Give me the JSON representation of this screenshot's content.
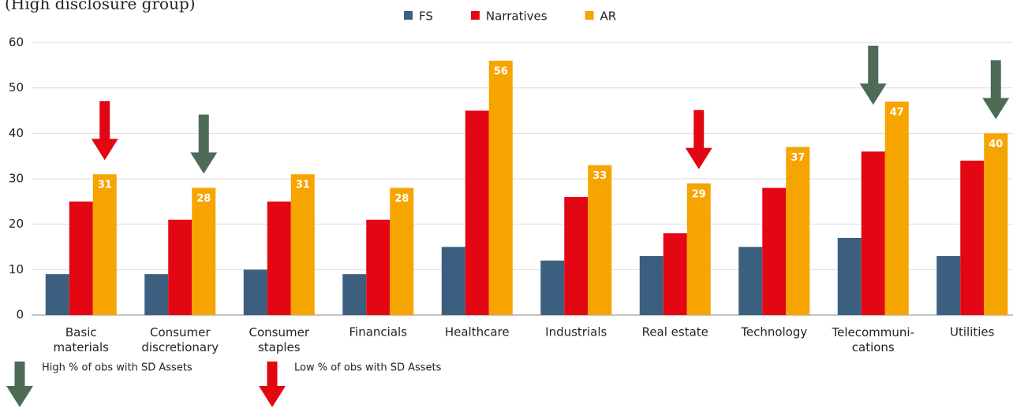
{
  "chart_data": {
    "type": "bar",
    "title": "(High disclosure group)",
    "categories": [
      "Basic\nmaterials",
      "Consumer\ndiscretionary",
      "Consumer\nstaples",
      "Financials",
      "Healthcare",
      "Industrials",
      "Real estate",
      "Technology",
      "Telecommuni-\ncations",
      "Utilities"
    ],
    "series": [
      {
        "name": "FS",
        "color": "#3d5f7f",
        "values": [
          9,
          9,
          10,
          9,
          15,
          12,
          13,
          15,
          17,
          13
        ]
      },
      {
        "name": "Narratives",
        "color": "#e30613",
        "values": [
          25,
          21,
          25,
          21,
          45,
          26,
          18,
          28,
          36,
          34
        ]
      },
      {
        "name": "AR",
        "color": "#f6a500",
        "values": [
          31,
          28,
          31,
          28,
          56,
          33,
          29,
          37,
          47,
          40
        ],
        "data_labels": true
      }
    ],
    "ylim": [
      0,
      60
    ],
    "yticks": [
      0,
      10,
      20,
      30,
      40,
      50,
      60
    ],
    "grid": true,
    "legend": "top",
    "markers": [
      {
        "label": "High % of obs with SD Assets",
        "color": "#4d6b57",
        "categories": [
          "Consumer\ndiscretionary",
          "Telecommuni-\ncations",
          "Utilities"
        ]
      },
      {
        "label": "Low % of obs with SD Assets",
        "color": "#e30613",
        "categories": [
          "Basic\nmaterials",
          "Real estate"
        ]
      }
    ]
  }
}
